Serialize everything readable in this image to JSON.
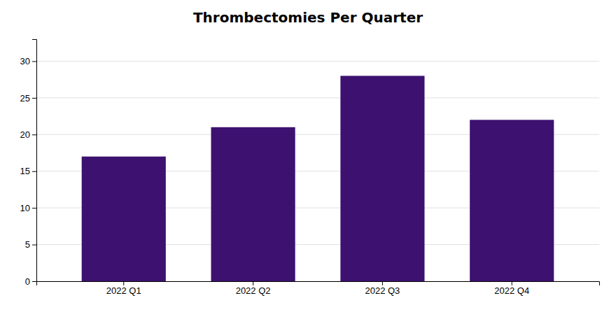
{
  "chart_data": {
    "type": "bar",
    "title": "Thrombectomies Per Quarter",
    "categories": [
      "2022 Q1",
      "2022 Q2",
      "2022 Q3",
      "2022 Q4"
    ],
    "values": [
      17,
      21,
      28,
      22
    ],
    "color": "#3D1170",
    "ylim": [
      0,
      33
    ],
    "yticks": [
      0,
      5,
      10,
      15,
      20,
      25,
      30
    ],
    "grid": true
  }
}
